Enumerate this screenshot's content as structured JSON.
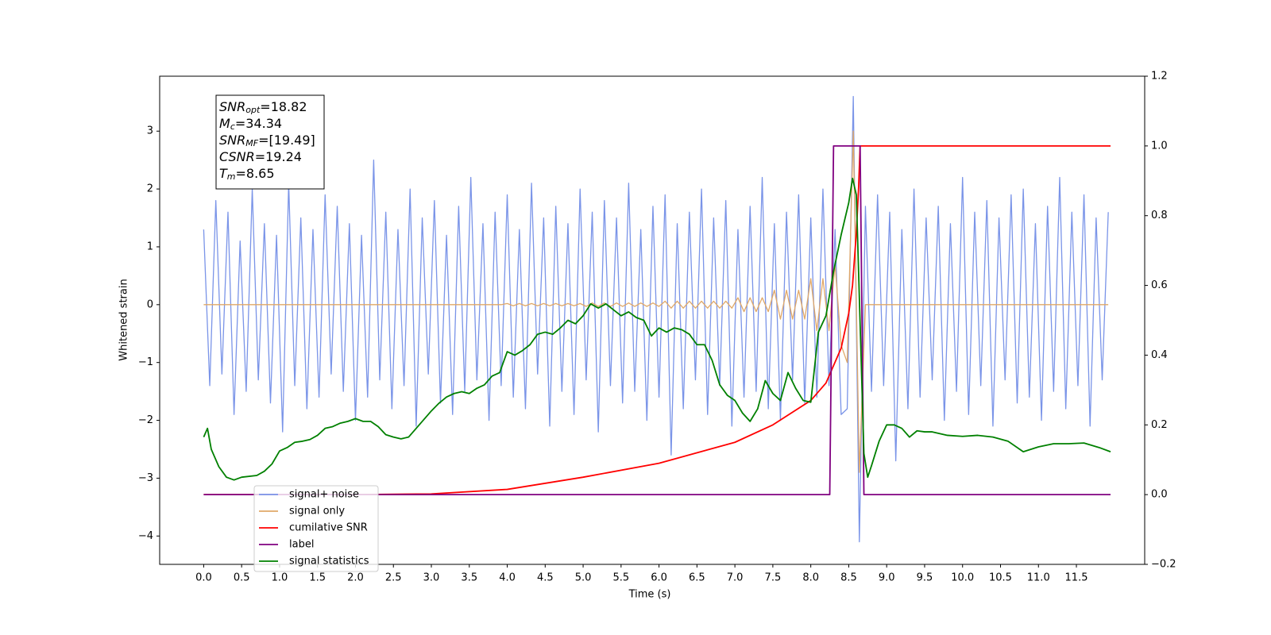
{
  "chart_data": {
    "type": "line",
    "x_label": "Time (s)",
    "y_label": "Whitened strain",
    "xlim": [
      -0.58,
      12.4
    ],
    "ylim": [
      -4.49,
      3.95
    ],
    "y2lim": [
      -0.2,
      1.2
    ],
    "xticks": [
      {
        "value": 0,
        "label": "0.0"
      },
      0.5,
      {
        "value": 1,
        "label": "1.0"
      },
      1.5,
      {
        "value": 2,
        "label": "2.0"
      },
      2.5,
      {
        "value": 3,
        "label": "3.0"
      },
      3.5,
      {
        "value": 4,
        "label": "4.0"
      },
      4.5,
      {
        "value": 5,
        "label": "5.0"
      },
      5.5,
      {
        "value": 6,
        "label": "6.0"
      },
      6.5,
      {
        "value": 7,
        "label": "7.0"
      },
      7.5,
      {
        "value": 8,
        "label": "8.0"
      },
      8.5,
      {
        "value": 9,
        "label": "9.0"
      },
      9.5,
      {
        "value": 10,
        "label": "10.0"
      },
      10.5,
      {
        "value": 11,
        "label": "11.0"
      },
      11.5
    ],
    "yticks": [
      {
        "value": -4,
        "label": "−4"
      },
      {
        "value": -3,
        "label": "−3"
      },
      {
        "value": -2,
        "label": "−2"
      },
      {
        "value": -1,
        "label": "−1"
      },
      0,
      1,
      2,
      3
    ],
    "y2ticks": [
      {
        "value": -0.2,
        "label": "−0.2"
      },
      {
        "value": 0,
        "label": "0.0"
      },
      0.2,
      0.4,
      0.6,
      0.8,
      {
        "value": 1,
        "label": "1.0"
      },
      1.2
    ],
    "legend": "lower left",
    "annotation": [
      {
        "text": "SNR",
        "sub": "opt",
        "value": "=18.82"
      },
      {
        "text": "M",
        "sub": "c",
        "value": "=34.34"
      },
      {
        "text": "SNR",
        "sub": "MF",
        "value": "=[19.49]"
      },
      {
        "text": "CSNR",
        "value": "=19.24"
      },
      {
        "text": "T",
        "sub": "m",
        "value": "=8.65"
      }
    ],
    "x": [
      0,
      0.08,
      0.16,
      0.24,
      0.32,
      0.4,
      0.48,
      0.56,
      0.64,
      0.72,
      0.8,
      0.88,
      0.96,
      1.04,
      1.12,
      1.2,
      1.28,
      1.36,
      1.44,
      1.52,
      1.6,
      1.68,
      1.76,
      1.84,
      1.92,
      2.0,
      2.08,
      2.16,
      2.24,
      2.32,
      2.4,
      2.48,
      2.56,
      2.64,
      2.72,
      2.8,
      2.88,
      2.96,
      3.04,
      3.12,
      3.2,
      3.28,
      3.36,
      3.44,
      3.52,
      3.6,
      3.68,
      3.76,
      3.84,
      3.92,
      4.0,
      4.08,
      4.16,
      4.24,
      4.32,
      4.4,
      4.48,
      4.56,
      4.64,
      4.72,
      4.8,
      4.88,
      4.96,
      5.04,
      5.12,
      5.2,
      5.28,
      5.36,
      5.44,
      5.52,
      5.6,
      5.68,
      5.76,
      5.84,
      5.92,
      6.0,
      6.08,
      6.16,
      6.24,
      6.32,
      6.4,
      6.48,
      6.56,
      6.64,
      6.72,
      6.8,
      6.88,
      6.96,
      7.04,
      7.12,
      7.2,
      7.28,
      7.36,
      7.44,
      7.52,
      7.6,
      7.68,
      7.76,
      7.84,
      7.92,
      8.0,
      8.08,
      8.16,
      8.24,
      8.32,
      8.4,
      8.48,
      8.56,
      8.64,
      8.72,
      8.8,
      8.88,
      8.96,
      9.04,
      9.12,
      9.2,
      9.28,
      9.36,
      9.44,
      9.52,
      9.6,
      9.68,
      9.76,
      9.84,
      9.92,
      10.0,
      10.08,
      10.16,
      10.24,
      10.32,
      10.4,
      10.48,
      10.56,
      10.64,
      10.72,
      10.8,
      10.88,
      10.96,
      11.04,
      11.12,
      11.2,
      11.28,
      11.36,
      11.44,
      11.52,
      11.6,
      11.68,
      11.76,
      11.84,
      11.92
    ],
    "series": [
      {
        "name": "signal+ noise",
        "color": "#7a94e8",
        "axis": "y",
        "values": [
          1.3,
          -1.4,
          1.8,
          -1.2,
          1.6,
          -1.9,
          1.1,
          -1.5,
          2.0,
          -1.3,
          1.4,
          -1.7,
          1.2,
          -2.2,
          2.1,
          -1.4,
          1.5,
          -1.8,
          1.3,
          -1.6,
          1.9,
          -1.2,
          1.7,
          -1.5,
          1.4,
          -2.0,
          1.2,
          -1.6,
          2.5,
          -1.3,
          1.6,
          -1.8,
          1.3,
          -1.4,
          2.0,
          -2.1,
          1.5,
          -1.2,
          1.8,
          -1.7,
          1.2,
          -1.9,
          1.7,
          -1.5,
          2.2,
          -1.3,
          1.4,
          -2.0,
          1.6,
          -1.4,
          1.9,
          -1.6,
          1.3,
          -1.8,
          2.1,
          -1.2,
          1.5,
          -2.1,
          1.7,
          -1.5,
          1.4,
          -1.9,
          2.0,
          -1.3,
          1.6,
          -2.2,
          1.8,
          -1.4,
          1.5,
          -1.7,
          2.1,
          -1.5,
          1.3,
          -2.0,
          1.7,
          -1.6,
          1.9,
          -2.6,
          1.4,
          -1.8,
          1.6,
          -1.3,
          2.0,
          -1.9,
          1.5,
          -1.4,
          1.8,
          -2.1,
          1.3,
          -1.6,
          1.7,
          -1.5,
          2.2,
          -1.8,
          1.4,
          -2.0,
          1.6,
          -1.3,
          1.9,
          -1.7,
          1.5,
          -1.6,
          2.0,
          -1.4,
          1.3,
          -1.9,
          -1.8,
          3.6,
          -4.1,
          1.7,
          -1.5,
          1.9,
          -1.4,
          1.6,
          -2.7,
          1.3,
          -1.8,
          2.0,
          -1.6,
          1.5,
          -1.3,
          1.7,
          -2.0,
          1.4,
          -1.5,
          2.2,
          -1.9,
          1.6,
          -1.4,
          1.8,
          -2.1,
          1.5,
          -1.3,
          1.9,
          -1.7,
          2.0,
          -1.6,
          1.4,
          -2.0,
          1.7,
          -1.5,
          2.2,
          -1.8,
          1.6,
          -1.4,
          1.9,
          -2.1,
          1.5,
          -1.3,
          1.6
        ]
      },
      {
        "name": "signal only",
        "color": "#e0a868",
        "axis": "y",
        "values": [
          0,
          0,
          0,
          0,
          0,
          0,
          0,
          0,
          0,
          0,
          0,
          0,
          0,
          0,
          0,
          0,
          0,
          0,
          0,
          0,
          0,
          0,
          0,
          0,
          0,
          0,
          0,
          0,
          0,
          0,
          0,
          0,
          0,
          0,
          0,
          0,
          0,
          0,
          0,
          0,
          0,
          0,
          0,
          0,
          0,
          0,
          0,
          0,
          0,
          0,
          0.02,
          -0.02,
          0.02,
          -0.02,
          0.02,
          -0.02,
          0.02,
          -0.02,
          0.02,
          -0.02,
          0.02,
          -0.02,
          0.02,
          -0.03,
          0.03,
          -0.03,
          0.03,
          -0.03,
          0.03,
          -0.03,
          0.03,
          -0.03,
          0.03,
          -0.03,
          0.03,
          -0.03,
          0.06,
          -0.06,
          0.06,
          -0.06,
          0.06,
          -0.06,
          0.06,
          -0.06,
          0.06,
          -0.06,
          0.06,
          -0.06,
          0.12,
          -0.12,
          0.12,
          -0.12,
          0.12,
          -0.12,
          0.25,
          -0.25,
          0.25,
          -0.25,
          0.25,
          -0.25,
          0.45,
          -0.45,
          0.45,
          -0.45,
          0.7,
          -0.7,
          -1.0,
          3.0,
          -2.9,
          0,
          0,
          0,
          0,
          0,
          0,
          0,
          0,
          0,
          0,
          0,
          0,
          0,
          0,
          0,
          0,
          0,
          0,
          0,
          0,
          0,
          0,
          0,
          0,
          0,
          0,
          0,
          0,
          0,
          0,
          0,
          0,
          0,
          0,
          0,
          0,
          0,
          0,
          0,
          0,
          0
        ]
      },
      {
        "name": "cumilative SNR",
        "color": "#ff0000",
        "axis": "y2",
        "x": [
          0,
          1,
          2,
          3,
          4,
          5,
          6,
          7,
          7.5,
          8,
          8.2,
          8.4,
          8.5,
          8.55,
          8.6,
          8.63,
          8.65,
          11.95
        ],
        "values": [
          0,
          0,
          0,
          0.002,
          0.015,
          0.05,
          0.09,
          0.15,
          0.2,
          0.27,
          0.32,
          0.42,
          0.52,
          0.6,
          0.75,
          0.88,
          1.0,
          1.0
        ]
      },
      {
        "name": "label",
        "color": "#800080",
        "axis": "y2",
        "x": [
          0,
          8.25,
          8.3,
          8.65,
          8.7,
          11.95
        ],
        "values": [
          0,
          0,
          1,
          1,
          0,
          0
        ]
      },
      {
        "name": "signal statistics",
        "color": "#008000",
        "axis": "y2",
        "x": [
          0,
          0.05,
          0.1,
          0.2,
          0.3,
          0.4,
          0.5,
          0.7,
          0.8,
          0.9,
          1.0,
          1.1,
          1.2,
          1.3,
          1.4,
          1.5,
          1.6,
          1.7,
          1.8,
          1.9,
          2.0,
          2.1,
          2.2,
          2.3,
          2.4,
          2.5,
          2.6,
          2.7,
          2.8,
          2.9,
          3.0,
          3.1,
          3.2,
          3.3,
          3.4,
          3.5,
          3.6,
          3.7,
          3.8,
          3.9,
          4.0,
          4.1,
          4.2,
          4.3,
          4.4,
          4.5,
          4.6,
          4.7,
          4.8,
          4.9,
          5.0,
          5.1,
          5.2,
          5.3,
          5.4,
          5.5,
          5.6,
          5.7,
          5.8,
          5.9,
          6.0,
          6.1,
          6.2,
          6.3,
          6.4,
          6.5,
          6.6,
          6.7,
          6.8,
          6.9,
          7.0,
          7.1,
          7.2,
          7.3,
          7.4,
          7.5,
          7.6,
          7.7,
          7.8,
          7.9,
          8.0,
          8.1,
          8.2,
          8.3,
          8.4,
          8.5,
          8.55,
          8.6,
          8.65,
          8.7,
          8.75,
          8.8,
          8.9,
          9.0,
          9.1,
          9.2,
          9.3,
          9.4,
          9.5,
          9.6,
          9.8,
          10.0,
          10.2,
          10.4,
          10.6,
          10.8,
          11.0,
          11.2,
          11.4,
          11.6,
          11.8,
          11.95
        ],
        "values": [
          0.165,
          0.19,
          0.13,
          0.08,
          0.05,
          0.042,
          0.05,
          0.055,
          0.067,
          0.088,
          0.125,
          0.135,
          0.15,
          0.153,
          0.158,
          0.17,
          0.19,
          0.195,
          0.205,
          0.21,
          0.218,
          0.21,
          0.21,
          0.195,
          0.172,
          0.165,
          0.16,
          0.165,
          0.19,
          0.215,
          0.24,
          0.262,
          0.28,
          0.29,
          0.295,
          0.29,
          0.305,
          0.315,
          0.34,
          0.35,
          0.41,
          0.4,
          0.413,
          0.43,
          0.46,
          0.466,
          0.46,
          0.478,
          0.5,
          0.49,
          0.513,
          0.547,
          0.535,
          0.547,
          0.53,
          0.513,
          0.524,
          0.508,
          0.5,
          0.455,
          0.478,
          0.466,
          0.478,
          0.473,
          0.46,
          0.43,
          0.43,
          0.385,
          0.315,
          0.285,
          0.27,
          0.234,
          0.21,
          0.246,
          0.327,
          0.29,
          0.27,
          0.35,
          0.305,
          0.27,
          0.265,
          0.466,
          0.513,
          0.64,
          0.745,
          0.837,
          0.907,
          0.86,
          0.49,
          0.118,
          0.05,
          0.083,
          0.153,
          0.2,
          0.2,
          0.19,
          0.165,
          0.183,
          0.18,
          0.18,
          0.17,
          0.167,
          0.17,
          0.165,
          0.153,
          0.123,
          0.137,
          0.146,
          0.146,
          0.148,
          0.135,
          0.123
        ]
      }
    ]
  }
}
